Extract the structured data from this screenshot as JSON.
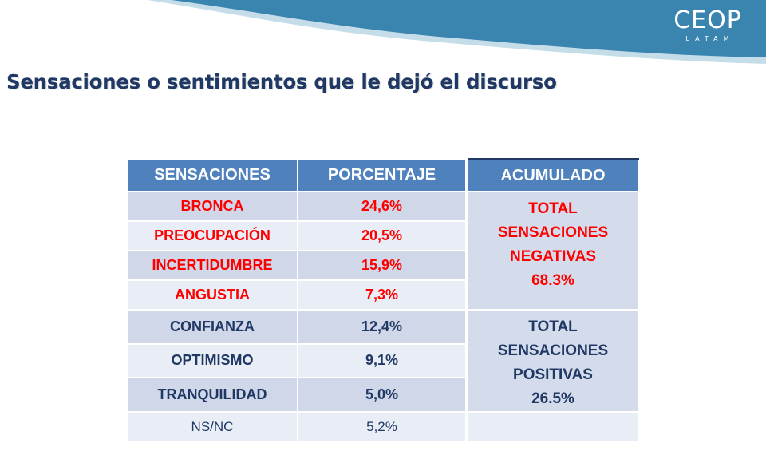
{
  "logo": {
    "main": "CEOP",
    "sub": "LATAM"
  },
  "title": "Sensaciones o sentimientos que le dejó el discurso",
  "table": {
    "headers": [
      "SENSACIONES",
      "PORCENTAJE",
      "ACUMULADO"
    ],
    "rows": [
      {
        "label": "BRONCA",
        "value": "24,6%"
      },
      {
        "label": "PREOCUPACIÓN",
        "value": "20,5%"
      },
      {
        "label": "INCERTIDUMBRE",
        "value": "15,9%"
      },
      {
        "label": "ANGUSTIA",
        "value": "7,3%"
      },
      {
        "label": "CONFIANZA",
        "value": "12,4%"
      },
      {
        "label": "OPTIMISMO",
        "value": "9,1%"
      },
      {
        "label": "TRANQUILIDAD",
        "value": "5,0%"
      },
      {
        "label": "NS/NC",
        "value": "5,2%"
      }
    ],
    "negative_total": [
      "TOTAL",
      "SENSACIONES",
      "NEGATIVAS",
      "68.3%"
    ],
    "positive_total": [
      "TOTAL",
      "SENSACIONES",
      "POSITIVAS",
      "26.5%"
    ]
  },
  "colors": {
    "header_bg": "#4f81bd",
    "negative_text": "#ff0000",
    "positive_text": "#1f3864",
    "title_text": "#1f3864",
    "wave": "#3a84b0"
  }
}
